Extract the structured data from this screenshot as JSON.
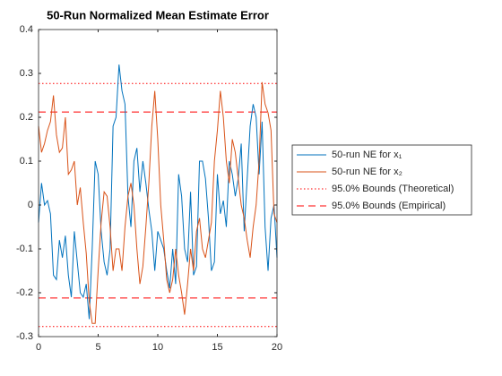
{
  "chart_data": {
    "type": "line",
    "title": "50-Run Normalized Mean Estimate Error",
    "x": [
      0,
      0.25,
      0.5,
      0.75,
      1,
      1.25,
      1.5,
      1.75,
      2,
      2.25,
      2.5,
      2.75,
      3,
      3.25,
      3.5,
      3.75,
      4,
      4.25,
      4.5,
      4.75,
      5,
      5.25,
      5.5,
      5.75,
      6,
      6.25,
      6.5,
      6.75,
      7,
      7.25,
      7.5,
      7.75,
      8,
      8.25,
      8.5,
      8.75,
      9,
      9.25,
      9.5,
      9.75,
      10,
      10.25,
      10.5,
      10.75,
      11,
      11.25,
      11.5,
      11.75,
      12,
      12.25,
      12.5,
      12.75,
      13,
      13.25,
      13.5,
      13.75,
      14,
      14.25,
      14.5,
      14.75,
      15,
      15.25,
      15.5,
      15.75,
      16,
      16.25,
      16.5,
      16.75,
      17,
      17.25,
      17.5,
      17.75,
      18,
      18.25,
      18.5,
      18.75,
      19,
      19.25,
      19.5,
      19.75,
      20
    ],
    "series": [
      {
        "name": "50-run NE for x₁",
        "color": "#0072bd",
        "values": [
          -0.04,
          0.05,
          0.0,
          0.01,
          -0.02,
          -0.16,
          -0.17,
          -0.08,
          -0.12,
          -0.07,
          -0.16,
          -0.21,
          -0.06,
          -0.13,
          -0.2,
          -0.21,
          -0.18,
          -0.26,
          -0.1,
          0.1,
          0.07,
          -0.06,
          -0.13,
          -0.16,
          -0.1,
          0.18,
          0.2,
          0.32,
          0.26,
          0.23,
          0.02,
          -0.05,
          0.1,
          0.13,
          0.03,
          0.1,
          0.05,
          -0.01,
          -0.06,
          -0.15,
          -0.06,
          -0.08,
          -0.1,
          -0.15,
          -0.19,
          -0.1,
          -0.18,
          0.07,
          0.02,
          -0.1,
          -0.13,
          0.03,
          -0.16,
          -0.14,
          0.1,
          0.1,
          0.06,
          -0.03,
          -0.15,
          -0.13,
          0.07,
          -0.02,
          0.01,
          -0.05,
          0.1,
          0.07,
          0.02,
          0.06,
          0.14,
          -0.06,
          0.06,
          0.18,
          0.23,
          0.2,
          0.07,
          0.19,
          -0.05,
          -0.15,
          -0.03,
          0.0,
          -0.12
        ]
      },
      {
        "name": "50-run NE for x₂",
        "color": "#d95319",
        "values": [
          0.18,
          0.12,
          0.14,
          0.17,
          0.19,
          0.25,
          0.16,
          0.12,
          0.13,
          0.2,
          0.07,
          0.08,
          0.1,
          0.0,
          0.04,
          -0.04,
          -0.11,
          -0.22,
          -0.27,
          -0.27,
          -0.15,
          -0.04,
          0.03,
          0.02,
          -0.05,
          -0.15,
          -0.1,
          -0.1,
          -0.15,
          -0.05,
          0.02,
          0.05,
          0.0,
          -0.1,
          -0.18,
          -0.14,
          -0.05,
          0.05,
          0.18,
          0.26,
          0.15,
          0.0,
          -0.08,
          -0.17,
          -0.2,
          -0.17,
          -0.1,
          -0.16,
          -0.2,
          -0.25,
          -0.18,
          -0.1,
          -0.15,
          -0.06,
          -0.03,
          -0.1,
          -0.12,
          -0.08,
          -0.04,
          0.1,
          0.17,
          0.26,
          0.2,
          0.1,
          0.05,
          0.15,
          0.12,
          0.06,
          0.0,
          -0.03,
          -0.08,
          -0.12,
          -0.05,
          0.0,
          0.1,
          0.28,
          0.23,
          0.21,
          0.17,
          -0.02,
          -0.04
        ]
      }
    ],
    "bounds": [
      {
        "name": "95.0% Bounds (Theoretical)",
        "color": "#ff0000",
        "dash": "dotted",
        "values": [
          0.277,
          -0.277
        ]
      },
      {
        "name": "95.0% Bounds (Empirical)",
        "color": "#ff0000",
        "dash": "dashed",
        "values": [
          0.212,
          -0.212
        ]
      }
    ],
    "xlim": [
      0,
      20
    ],
    "xticks": [
      0,
      5,
      10,
      15,
      20
    ],
    "ylim": [
      -0.3,
      0.4
    ],
    "yticks": [
      -0.3,
      -0.2,
      -0.1,
      0,
      0.1,
      0.2,
      0.3,
      0.4
    ],
    "grid": false,
    "legend": "right"
  }
}
